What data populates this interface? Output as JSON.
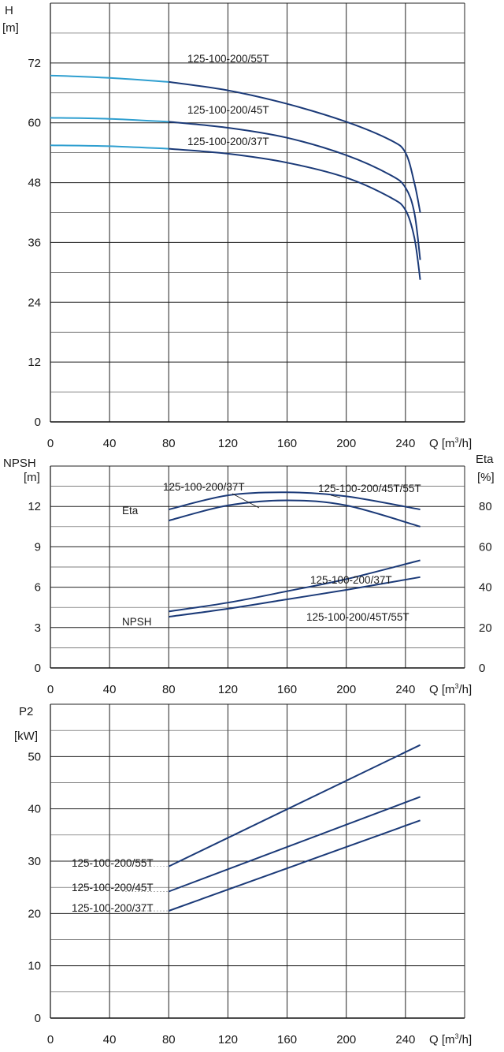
{
  "charts": {
    "head": {
      "ylabel": "H",
      "yunit": "[m]",
      "xlabel": "Q [m³/h]",
      "yticks": [
        "0",
        "12",
        "24",
        "36",
        "48",
        "60",
        "72"
      ],
      "xticks": [
        "0",
        "40",
        "80",
        "120",
        "160",
        "200",
        "240"
      ]
    },
    "npsh": {
      "ylabel_left": "NPSH",
      "yunit_left": "[m]",
      "ylabel_right": "Eta",
      "yunit_right": "[%]",
      "xlabel": "Q [m³/h]",
      "yticks_left": [
        "0",
        "3",
        "6",
        "9",
        "12"
      ],
      "yticks_right": [
        "0",
        "20",
        "40",
        "60",
        "80"
      ],
      "xticks": [
        "0",
        "40",
        "80",
        "120",
        "160",
        "200",
        "240"
      ],
      "eta_tag": "Eta",
      "npsh_tag": "NPSH"
    },
    "power": {
      "ylabel": "P2",
      "yunit": "[kW]",
      "xlabel": "Q [m³/h]",
      "yticks": [
        "0",
        "10",
        "20",
        "30",
        "40",
        "50"
      ],
      "xticks": [
        "0",
        "40",
        "80",
        "120",
        "160",
        "200",
        "240"
      ]
    }
  },
  "chart_data": [
    {
      "type": "line",
      "xlabel": "Q [m³/h]",
      "ylabel": "H [m]",
      "xlim": [
        0,
        280
      ],
      "ylim": [
        0,
        84
      ],
      "grid": true,
      "series": [
        {
          "name": "125-100-200/55T",
          "x": [
            0,
            40,
            80,
            120,
            160,
            200,
            230,
            240,
            246,
            250
          ],
          "y": [
            69.5,
            69.0,
            68.2,
            66.5,
            63.8,
            60.2,
            56.5,
            54.0,
            48.0,
            42.0
          ],
          "color": "#1b3a78",
          "low_flow_color": "#2f9fd0"
        },
        {
          "name": "125-100-200/45T",
          "x": [
            0,
            40,
            80,
            120,
            160,
            200,
            230,
            240,
            246,
            250
          ],
          "y": [
            61.0,
            60.8,
            60.2,
            59.0,
            57.0,
            53.5,
            49.5,
            47.0,
            42.0,
            32.5
          ],
          "color": "#1b3a78",
          "low_flow_color": "#2f9fd0"
        },
        {
          "name": "125-100-200/37T",
          "x": [
            0,
            40,
            80,
            120,
            160,
            200,
            230,
            240,
            246,
            250
          ],
          "y": [
            55.5,
            55.3,
            54.8,
            53.8,
            52.0,
            49.0,
            45.0,
            42.5,
            37.0,
            28.5
          ],
          "color": "#1b3a78",
          "low_flow_color": "#2f9fd0"
        }
      ]
    },
    {
      "type": "line",
      "xlabel": "Q [m³/h]",
      "ylabel": "NPSH [m]",
      "y2label": "Eta [%]",
      "xlim": [
        0,
        280
      ],
      "ylim": [
        0,
        15
      ],
      "y2lim": [
        0,
        100
      ],
      "grid": true,
      "series": [
        {
          "name": "125-100-200/45T/55T",
          "axis": "right",
          "x": [
            80,
            120,
            160,
            200,
            250
          ],
          "y": [
            78.5,
            85.5,
            87.0,
            85.0,
            78.5
          ]
        },
        {
          "name": "125-100-200/37T",
          "axis": "right",
          "x": [
            80,
            120,
            160,
            200,
            250
          ],
          "y": [
            73.0,
            80.5,
            83.0,
            80.5,
            70.0
          ]
        },
        {
          "name": "125-100-200/37T",
          "axis": "left",
          "x": [
            80,
            120,
            160,
            200,
            250
          ],
          "y": [
            4.2,
            4.85,
            5.7,
            6.6,
            8.0
          ]
        },
        {
          "name": "125-100-200/45T/55T",
          "axis": "left",
          "x": [
            80,
            120,
            160,
            200,
            250
          ],
          "y": [
            3.8,
            4.4,
            5.1,
            5.8,
            6.75
          ]
        }
      ]
    },
    {
      "type": "line",
      "xlabel": "Q [m³/h]",
      "ylabel": "P2 [kW]",
      "xlim": [
        0,
        280
      ],
      "ylim": [
        0,
        55
      ],
      "grid": true,
      "series": [
        {
          "name": "125-100-200/55T",
          "x": [
            80,
            250
          ],
          "y": [
            29.0,
            52.2
          ]
        },
        {
          "name": "125-100-200/45T",
          "x": [
            80,
            250
          ],
          "y": [
            24.2,
            42.3
          ]
        },
        {
          "name": "125-100-200/37T",
          "x": [
            80,
            250
          ],
          "y": [
            20.5,
            37.8
          ]
        }
      ]
    }
  ]
}
